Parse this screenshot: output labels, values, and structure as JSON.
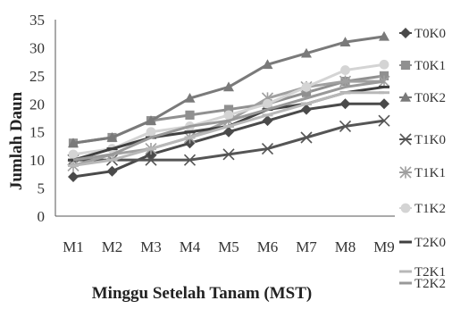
{
  "chart_data": {
    "type": "line",
    "title": "",
    "xlabel": "Minggu Setelah Tanam (MST)",
    "ylabel": "Jumlah Daun",
    "categories": [
      "M1",
      "M2",
      "M3",
      "M4",
      "M5",
      "M6",
      "M7",
      "M8",
      "M9"
    ],
    "ylim": [
      0,
      35
    ],
    "yticks": [
      0,
      5,
      10,
      15,
      20,
      25,
      30,
      35
    ],
    "grid": false,
    "legend_position": "right",
    "series": [
      {
        "name": "T0K0",
        "marker": "diamond",
        "color": "#4a4a4a",
        "values": [
          7,
          8,
          11,
          13,
          15,
          17,
          19,
          20,
          20
        ]
      },
      {
        "name": "T0K1",
        "marker": "square",
        "color": "#909090",
        "values": [
          13,
          14,
          17,
          18,
          19,
          20,
          22,
          24,
          25
        ]
      },
      {
        "name": "T0K2",
        "marker": "triangle",
        "color": "#7a7a7a",
        "values": [
          13,
          14,
          17,
          21,
          23,
          27,
          29,
          31,
          32
        ]
      },
      {
        "name": "T1K0",
        "marker": "x",
        "color": "#555555",
        "values": [
          10,
          10,
          10,
          10,
          11,
          12,
          14,
          16,
          17
        ]
      },
      {
        "name": "T1K1",
        "marker": "asterisk",
        "color": "#a0a0a0",
        "values": [
          9,
          11,
          12,
          14,
          17,
          21,
          23,
          24,
          24
        ]
      },
      {
        "name": "T1K2",
        "marker": "circle",
        "color": "#d4d4d4",
        "values": [
          11,
          12,
          15,
          16,
          18,
          20,
          23,
          26,
          27
        ]
      },
      {
        "name": "T2K0",
        "marker": "dash",
        "color": "#404040",
        "values": [
          10,
          12,
          14,
          15,
          16,
          19,
          20,
          22,
          23
        ]
      },
      {
        "name": "T2K1",
        "marker": "dash",
        "color": "#b8b8b8",
        "values": [
          9,
          10,
          12,
          14,
          16,
          18,
          20,
          22,
          22
        ]
      },
      {
        "name": "T2K2",
        "marker": "none",
        "color": "#999999",
        "values": [
          10,
          11,
          14,
          16,
          17,
          19,
          21,
          23,
          24
        ]
      }
    ]
  }
}
